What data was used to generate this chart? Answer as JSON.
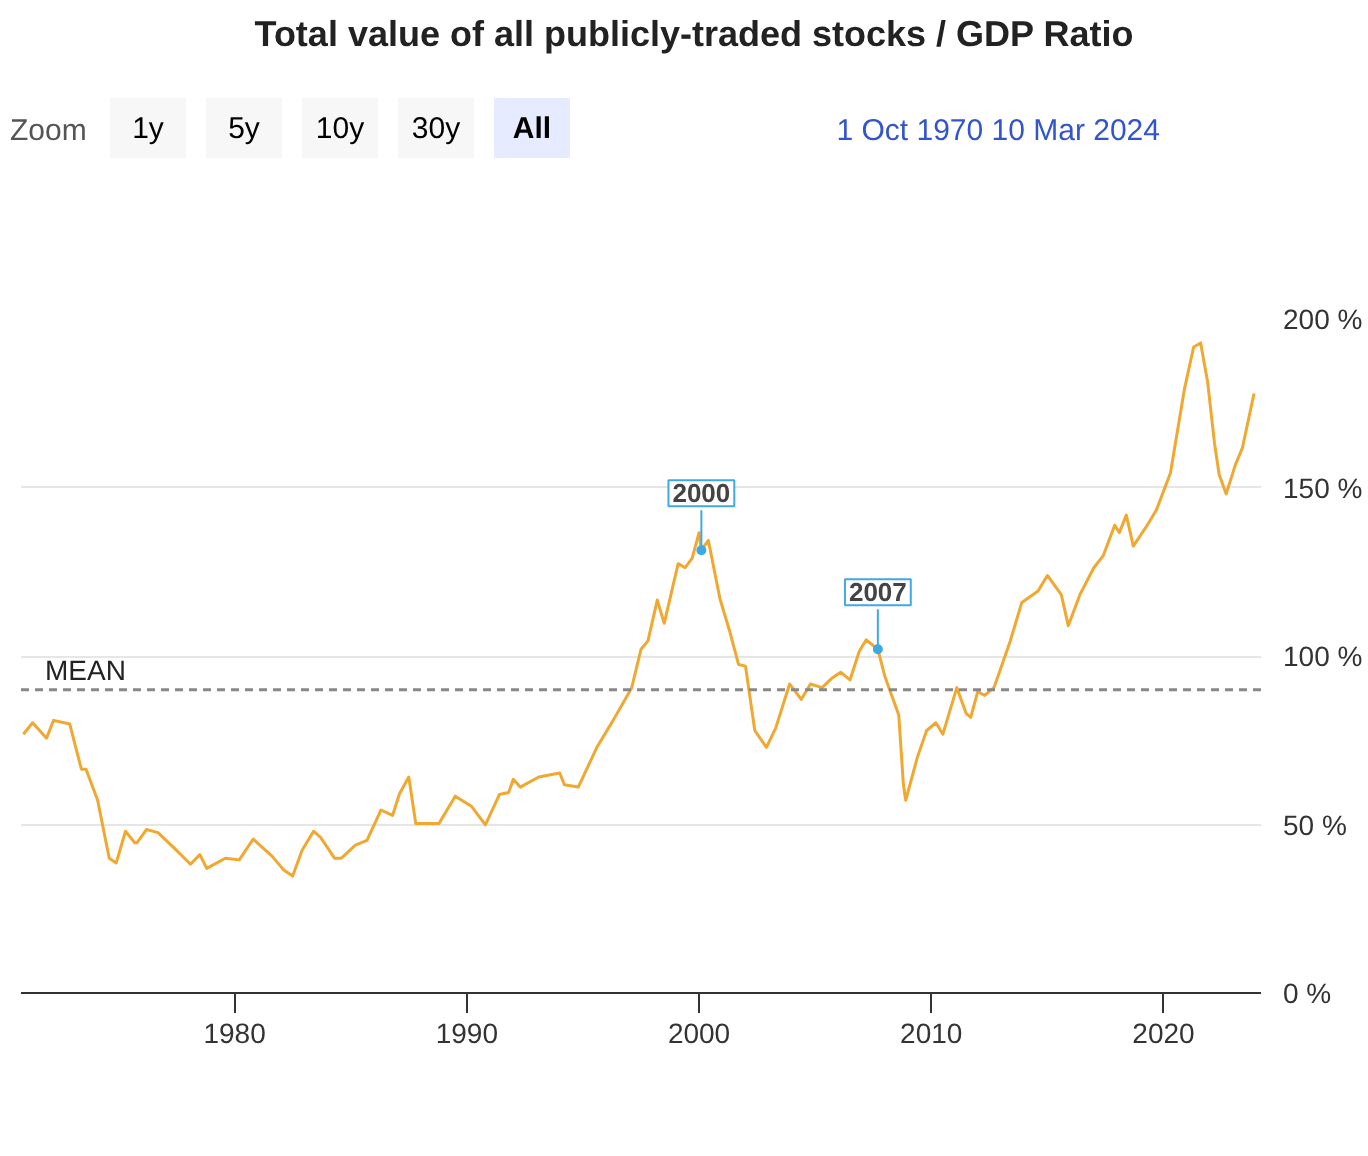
{
  "chart_data": {
    "type": "line",
    "title": "Total value of all publicly-traded stocks / GDP Ratio",
    "annotations": [
      "Zoom",
      "1y",
      "5y",
      "10y",
      "30y",
      "All",
      "1 Oct 1970",
      "10 Mar 2024",
      {
        "text": "2000",
        "x": 2000.1,
        "y": 131.4
      },
      {
        "text": "2007",
        "x": 2007.7,
        "y": 102
      }
    ],
    "x": [
      1970.9,
      1971.3,
      1971.9,
      1972.2,
      1972.9,
      1973.4,
      1973.6,
      1974.1,
      1974.6,
      1974.9,
      1975.3,
      1975.7,
      1975.8,
      1976.2,
      1976.7,
      1977.4,
      1978.1,
      1978.5,
      1978.8,
      1979.6,
      1980.2,
      1980.8,
      1981.0,
      1981.6,
      1982.1,
      1982.5,
      1982.9,
      1983.4,
      1983.7,
      1984.3,
      1984.6,
      1985.2,
      1985.7,
      1986.3,
      1986.8,
      1987.1,
      1987.5,
      1987.8,
      1988.8,
      1989.5,
      1990.2,
      1990.8,
      1991.4,
      1991.8,
      1992.0,
      1992.3,
      1993.1,
      1994.0,
      1994.2,
      1994.8,
      1995.6,
      1996.3,
      1997.1,
      1997.5,
      1997.8,
      1998.2,
      1998.5,
      1999.1,
      1999.4,
      1999.7,
      2000.0,
      2000.1,
      2000.4,
      2000.9,
      2001.3,
      2001.7,
      2002.0,
      2002.4,
      2002.9,
      2003.3,
      2003.9,
      2004.4,
      2004.8,
      2005.3,
      2005.7,
      2006.1,
      2006.5,
      2006.9,
      2007.2,
      2007.7,
      2008.0,
      2008.6,
      2008.8,
      2008.9,
      2009.4,
      2009.8,
      2010.2,
      2010.5,
      2011.1,
      2011.5,
      2011.7,
      2012.0,
      2012.3,
      2012.7,
      2013.4,
      2013.9,
      2014.6,
      2015.0,
      2015.6,
      2015.9,
      2016.4,
      2017.0,
      2017.4,
      2017.9,
      2018.1,
      2018.4,
      2018.7,
      2019.3,
      2019.7,
      2020.3,
      2020.9,
      2021.3,
      2021.6,
      2021.9,
      2022.2,
      2022.4,
      2022.7,
      2023.1,
      2023.4,
      2023.9
    ],
    "series": [
      {
        "color": "#f0a830",
        "values": [
          76.8,
          80.2,
          75.6,
          80.9,
          79.8,
          66.4,
          66.4,
          57.2,
          40,
          38.6,
          48,
          44.6,
          44.6,
          48.5,
          47.6,
          43,
          38.2,
          41.1,
          37,
          40,
          39.5,
          45.7,
          44.4,
          40.7,
          36.6,
          34.7,
          42.3,
          48,
          46.2,
          40,
          40,
          43.9,
          45.3,
          54.3,
          52.7,
          59.1,
          64.1,
          50.3,
          50.3,
          58.4,
          55.4,
          49.9,
          58.9,
          59.5,
          63.4,
          61.1,
          64.1,
          65.3,
          61.8,
          61.1,
          72.9,
          80.9,
          90.6,
          102,
          104.5,
          116.6,
          109.7,
          127.4,
          126.2,
          129,
          136.6,
          131.4,
          134.3,
          117,
          107.8,
          97.5,
          97,
          77.9,
          72.9,
          78.6,
          91.7,
          87.1,
          91.7,
          90.6,
          93.3,
          95.2,
          92.9,
          101.4,
          104.8,
          102,
          94,
          82.5,
          61.8,
          57.2,
          69.9,
          77.9,
          80.2,
          76.8,
          90.6,
          83,
          81.8,
          89.4,
          88.3,
          90.6,
          104.4,
          115.9,
          119.3,
          123.9,
          118.2,
          109,
          118.2,
          126.2,
          129.7,
          138.8,
          136.6,
          141.8,
          132.6,
          138.8,
          143.4,
          154.3,
          179.1,
          191.7,
          192.9,
          181.4,
          163,
          153.8,
          148.1,
          156.8,
          161.8,
          177.9
        ]
      }
    ],
    "xlim": [
      1970.8,
      2024.2
    ],
    "xticks": [
      1980,
      1990,
      2000,
      2010,
      2020
    ],
    "ylim": [
      0,
      200
    ],
    "yticks": [
      {
        "value": 0,
        "label": "0 %"
      },
      {
        "value": 50,
        "label": "50 %"
      },
      {
        "value": 100,
        "label": "100 %"
      },
      {
        "value": 150,
        "label": "150 %"
      },
      {
        "value": 200,
        "label": "200 %"
      }
    ],
    "ref_lines": [
      {
        "axis": "y",
        "value": 90,
        "label": "MEAN",
        "color": "#888888",
        "line_style": "dashed"
      }
    ],
    "grid": "y"
  }
}
